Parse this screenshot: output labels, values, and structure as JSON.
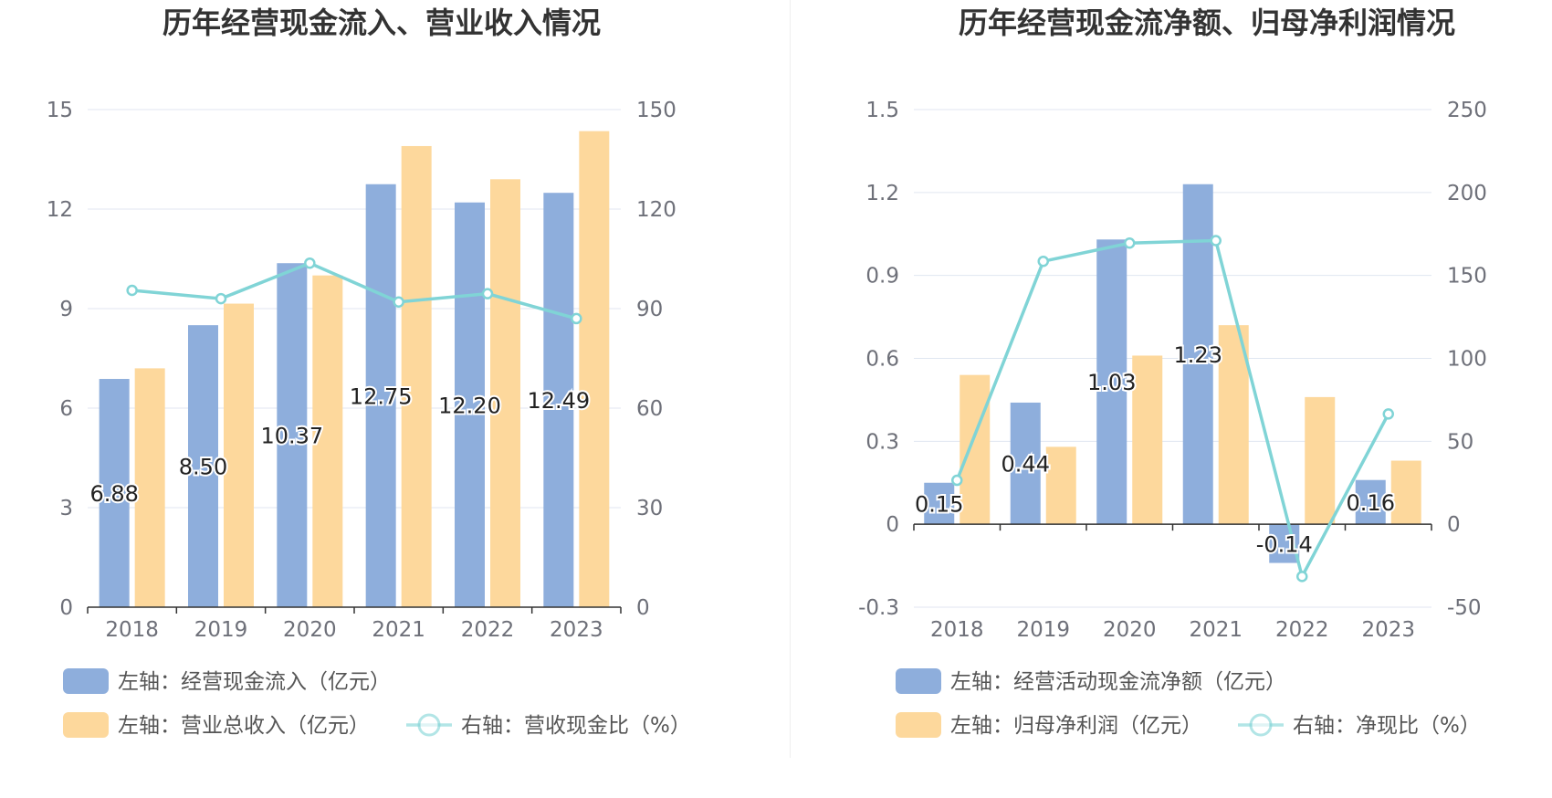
{
  "colors": {
    "bar_blue": "#8eaedc",
    "bar_orange": "#fdd89c",
    "line_teal": "#80d4d6",
    "grid": "#e0e6f1",
    "axis": "#333333"
  },
  "chart_data": [
    {
      "type": "bar",
      "title": "历年经营现金流入、营业收入情况",
      "categories": [
        "2018",
        "2019",
        "2020",
        "2021",
        "2022",
        "2023"
      ],
      "left_axis": {
        "ticks": [
          "0",
          "3",
          "6",
          "9",
          "12",
          "15"
        ],
        "range": [
          0,
          15
        ]
      },
      "right_axis": {
        "ticks": [
          "0",
          "30",
          "60",
          "90",
          "120",
          "150"
        ],
        "range": [
          0,
          150
        ]
      },
      "series": [
        {
          "name": "左轴：经营现金流入（亿元）",
          "axis": "left",
          "kind": "bar",
          "color": "#8eaedc",
          "values": [
            6.88,
            8.5,
            10.37,
            12.75,
            12.2,
            12.49
          ],
          "labels": [
            "6.88",
            "8.50",
            "10.37",
            "12.75",
            "12.20",
            "12.49"
          ]
        },
        {
          "name": "左轴：营业总收入（亿元）",
          "axis": "left",
          "kind": "bar",
          "color": "#fdd89c",
          "values": [
            7.2,
            9.15,
            10.0,
            13.9,
            12.9,
            14.35
          ]
        },
        {
          "name": "右轴：营收现金比（%）",
          "axis": "right",
          "kind": "line",
          "color": "#80d4d6",
          "values": [
            95.5,
            93.0,
            103.7,
            92.0,
            94.5,
            87.0
          ]
        }
      ],
      "legend": "bottom-left",
      "grid": true
    },
    {
      "type": "bar",
      "title": "历年经营现金流净额、归母净利润情况",
      "categories": [
        "2018",
        "2019",
        "2020",
        "2021",
        "2022",
        "2023"
      ],
      "left_axis": {
        "ticks": [
          "-0.3",
          "0",
          "0.3",
          "0.6",
          "0.9",
          "1.2",
          "1.5"
        ],
        "range": [
          -0.3,
          1.5
        ]
      },
      "right_axis": {
        "ticks": [
          "-50",
          "0",
          "50",
          "100",
          "150",
          "200",
          "250"
        ],
        "range": [
          -50,
          250
        ]
      },
      "series": [
        {
          "name": "左轴：经营活动现金流净额（亿元）",
          "axis": "left",
          "kind": "bar",
          "color": "#8eaedc",
          "values": [
            0.15,
            0.44,
            1.03,
            1.23,
            -0.14,
            0.16
          ],
          "labels": [
            "0.15",
            "0.44",
            "1.03",
            "1.23",
            "-0.14",
            "0.16"
          ]
        },
        {
          "name": "左轴：归母净利润（亿元）",
          "axis": "left",
          "kind": "bar",
          "color": "#fdd89c",
          "values": [
            0.54,
            0.28,
            0.61,
            0.72,
            0.46,
            0.23
          ]
        },
        {
          "name": "右轴：净现比（%）",
          "axis": "right",
          "kind": "line",
          "color": "#80d4d6",
          "values": [
            26.5,
            158.5,
            169.5,
            171.0,
            -31.5,
            66.5
          ]
        }
      ],
      "legend": "bottom-left",
      "grid": true
    }
  ]
}
